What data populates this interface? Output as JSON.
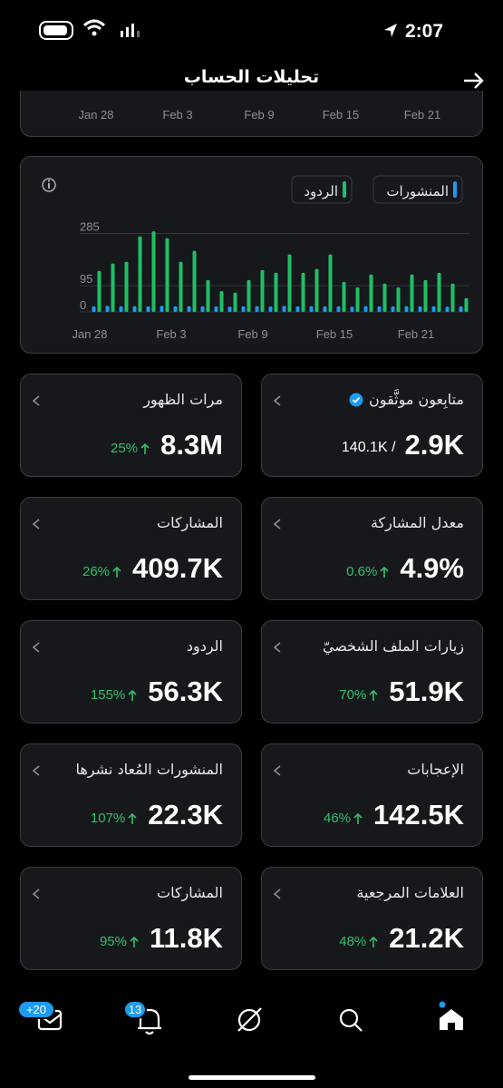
{
  "status_bar": {
    "time": "2:07"
  },
  "header": {
    "title": "تحليلات الحساب"
  },
  "top_chart_labels": [
    "Jan 28",
    "Feb 3",
    "Feb 9",
    "Feb 15",
    "Feb 21"
  ],
  "chart_data": {
    "type": "bar",
    "categories": [
      "Jan 28",
      null,
      null,
      null,
      null,
      null,
      "Feb 3",
      null,
      null,
      null,
      null,
      null,
      "Feb 9",
      null,
      null,
      null,
      null,
      null,
      "Feb 15",
      null,
      null,
      null,
      null,
      null,
      "Feb 21",
      null,
      null,
      null
    ],
    "series": [
      {
        "name": "المنشورات",
        "color": "#1d9bf0",
        "values": [
          20,
          22,
          20,
          21,
          20,
          22,
          20,
          21,
          20,
          20,
          19,
          20,
          21,
          20,
          22,
          20,
          21,
          20,
          20,
          19,
          21,
          20,
          20,
          21,
          20,
          20,
          19,
          20
        ]
      },
      {
        "name": "الردود",
        "color": "#1fbf65",
        "values": [
          149,
          176,
          182,
          275,
          293,
          268,
          182,
          222,
          116,
          76,
          70,
          116,
          152,
          142,
          209,
          142,
          156,
          209,
          109,
          89,
          136,
          103,
          89,
          136,
          116,
          142,
          103,
          50
        ]
      }
    ],
    "ylim": [
      0,
      300
    ],
    "yticks": [
      0,
      95,
      285
    ],
    "grid": true
  },
  "cards": [
    {
      "title": "متابِعون موثَّقون",
      "value": "2.9K",
      "secondary": "140.1K /",
      "verified": true
    },
    {
      "title": "مرات الظهور",
      "value": "8.3M",
      "change": "25%"
    },
    {
      "title": "معدل المشاركة",
      "value": "4.9%",
      "change": "0.6%"
    },
    {
      "title": "المشاركات",
      "value": "409.7K",
      "change": "26%"
    },
    {
      "title": "زيارات الملف الشخصيّ",
      "value": "51.9K",
      "change": "70%"
    },
    {
      "title": "الردود",
      "value": "56.3K",
      "change": "155%"
    },
    {
      "title": "الإعجابات",
      "value": "142.5K",
      "change": "46%"
    },
    {
      "title": "المنشورات المُعاد نشرها",
      "value": "22.3K",
      "change": "107%"
    },
    {
      "title": "العلامات المرجعية",
      "value": "21.2K",
      "change": "48%"
    },
    {
      "title": "المشاركات",
      "value": "11.8K",
      "change": "95%"
    }
  ],
  "nav": {
    "messages_badge": "+20",
    "notifications_badge": "13"
  }
}
